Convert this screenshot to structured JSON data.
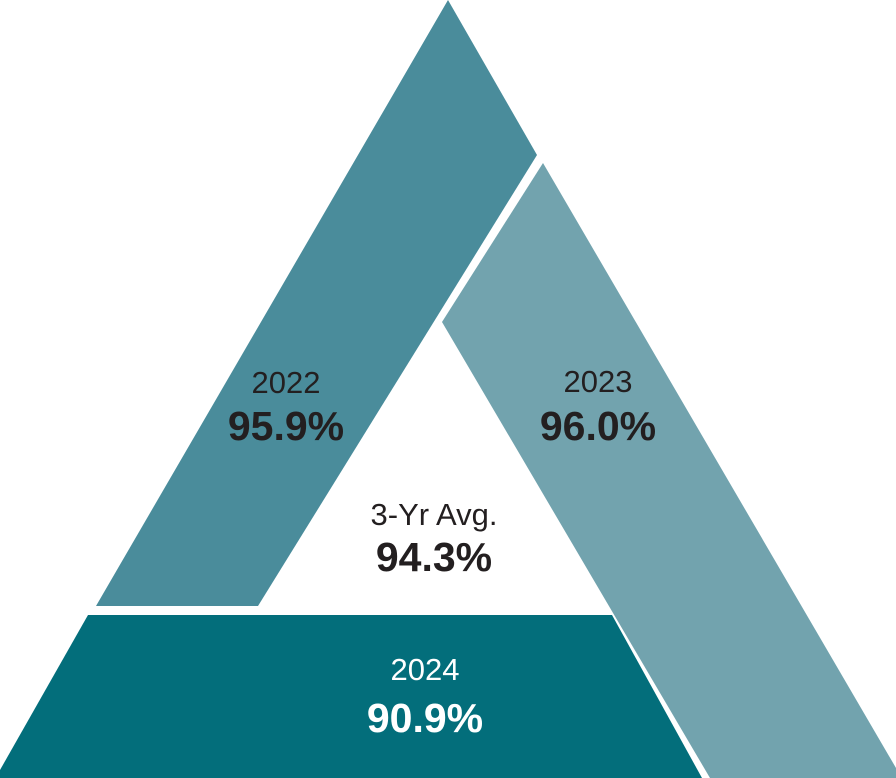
{
  "segments": [
    {
      "label": "2022",
      "value": "95.9%"
    },
    {
      "label": "2023",
      "value": "96.0%"
    },
    {
      "label": "2024",
      "value": "90.9%"
    }
  ],
  "center": {
    "label": "3-Yr Avg.",
    "value": "94.3%"
  }
}
